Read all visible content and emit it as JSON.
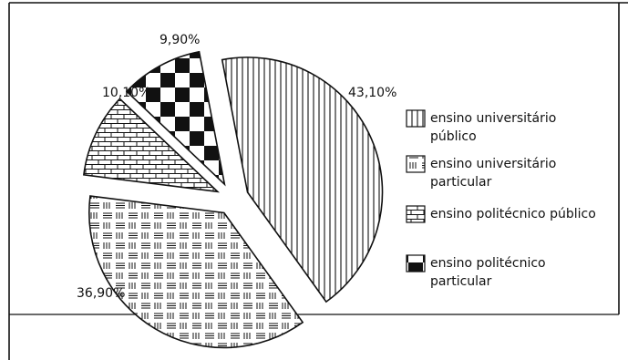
{
  "chart_data": {
    "type": "pie",
    "exploded": true,
    "title": "",
    "slices": [
      {
        "label": "ensino universitário público",
        "legend_lines": [
          "ensino universitário",
          "público"
        ],
        "value": 43.1,
        "label_text": "43,10%",
        "pattern": "vertical-stripes"
      },
      {
        "label": "ensino universitário particular",
        "legend_lines": [
          "ensino universitário",
          "particular"
        ],
        "value": 36.9,
        "label_text": "36,90%",
        "pattern": "weave"
      },
      {
        "label": "ensino politécnico público",
        "legend_lines": [
          "ensino politécnico público"
        ],
        "value": 10.1,
        "label_text": "10,10%",
        "pattern": "brick"
      },
      {
        "label": "ensino politécnico particular",
        "legend_lines": [
          "ensino politécnico",
          "particular"
        ],
        "value": 9.9,
        "label_text": "9,90%",
        "pattern": "checker"
      }
    ],
    "legend_position": "right"
  },
  "colors": {
    "ink": "#111111",
    "background": "#ffffff"
  }
}
